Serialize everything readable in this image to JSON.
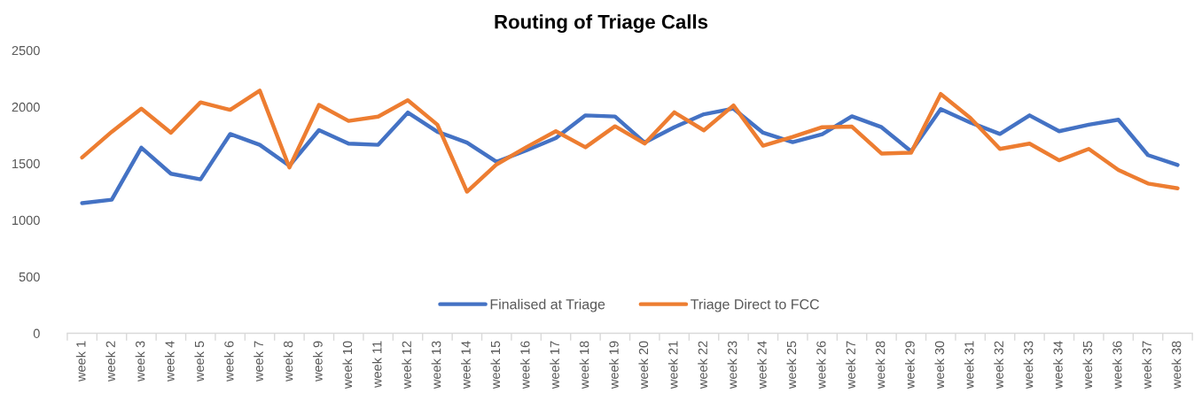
{
  "chart_data": {
    "type": "line",
    "title": "Routing of Triage Calls",
    "categories": [
      "week 1",
      "week 2",
      "week 3",
      "week 4",
      "week 5",
      "week 6",
      "week 7",
      "week 8",
      "week 9",
      "week 10",
      "week 11",
      "week 12",
      "week 13",
      "week 14",
      "week 15",
      "week 16",
      "week 17",
      "week 18",
      "week 19",
      "week 20",
      "week 21",
      "week 22",
      "week 23",
      "week 24",
      "week 25",
      "week 26",
      "week 27",
      "week 28",
      "week 29",
      "week 30",
      "week 31",
      "week 32",
      "week 33",
      "week 34",
      "week 35",
      "week 36",
      "week 37",
      "week 38"
    ],
    "series": [
      {
        "name": "Finalised at Triage",
        "color": "#4472c4",
        "values": [
          1150,
          1180,
          1640,
          1410,
          1360,
          1760,
          1665,
          1480,
          1795,
          1675,
          1665,
          1950,
          1780,
          1685,
          1515,
          1615,
          1725,
          1925,
          1915,
          1685,
          1820,
          1935,
          1985,
          1772,
          1689,
          1758,
          1917,
          1821,
          1607,
          1980,
          1862,
          1761,
          1925,
          1785,
          1843,
          1887,
          1574,
          1487
        ]
      },
      {
        "name": "Triage Direct to FCC",
        "color": "#ed7d31",
        "values": [
          1553,
          1780,
          1985,
          1772,
          2040,
          1974,
          2144,
          1465,
          2018,
          1876,
          1914,
          2059,
          1843,
          1251,
          1492,
          1643,
          1785,
          1643,
          1829,
          1676,
          1952,
          1793,
          2013,
          1657,
          1735,
          1821,
          1826,
          1588,
          1596,
          2114,
          1903,
          1629,
          1676,
          1528,
          1629,
          1443,
          1323,
          1281
        ]
      }
    ],
    "ylim": [
      0,
      2500
    ],
    "yticks": [
      0,
      500,
      1000,
      1500,
      2000,
      2500
    ],
    "legend": "bottom",
    "line_style": "solid",
    "marker": "none"
  }
}
